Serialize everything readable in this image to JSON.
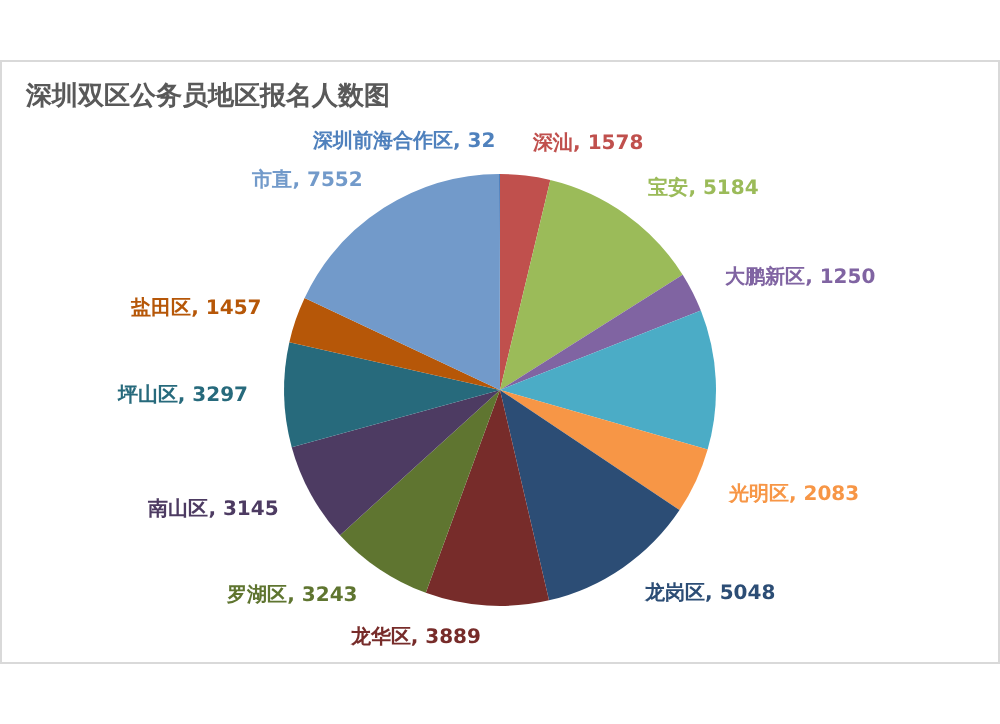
{
  "chart_data": {
    "type": "pie",
    "title": "深圳双区公务员地区报名人数图",
    "categories": [
      "深汕",
      "宝安",
      "大鹏新区",
      null,
      "光明区",
      "龙岗区",
      "龙华区",
      "罗湖区",
      "南山区",
      "坪山区",
      "盐田区",
      "市直",
      "深圳前海合作区"
    ],
    "values": [
      1578,
      5184,
      1250,
      4400,
      2083,
      5048,
      3889,
      3243,
      3145,
      3297,
      1457,
      7552,
      32
    ],
    "colors": [
      "#c0504d",
      "#9bbb59",
      "#8064a2",
      "#4bacc6",
      "#f79646",
      "#2c4d75",
      "#772c2a",
      "#5f7530",
      "#4d3b62",
      "#276a7c",
      "#b65708",
      "#729aca",
      "#4f81bd"
    ],
    "value_labels": [
      "1578",
      "5184",
      "1250",
      null,
      "2083",
      "5048",
      "3889",
      "3243",
      "3145",
      "3297",
      "1457",
      "7552",
      "32"
    ],
    "legend": false
  }
}
